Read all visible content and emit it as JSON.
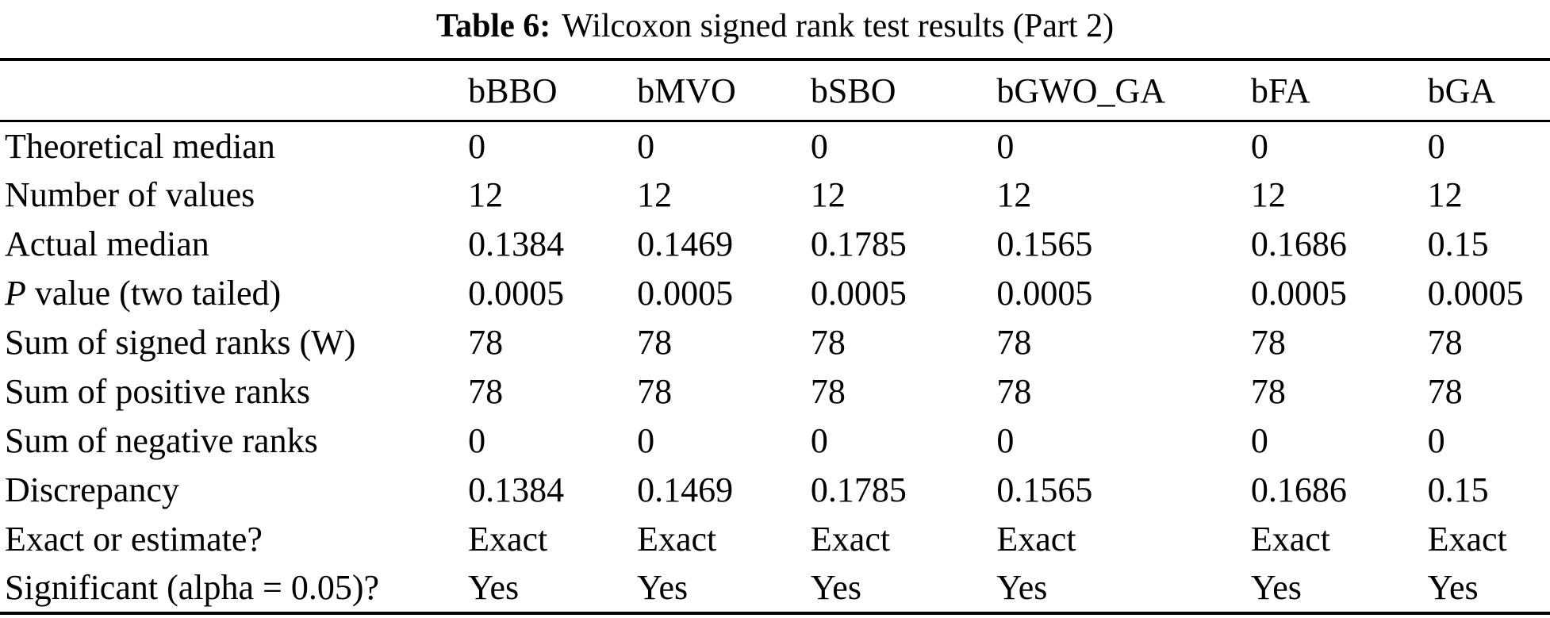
{
  "caption": {
    "label": "Table 6:",
    "text": "Wilcoxon signed rank test results (Part 2)"
  },
  "table": {
    "columns": [
      "bBBO",
      "bMVO",
      "bSBO",
      "bGWO_GA",
      "bFA",
      "bGA"
    ],
    "rows": [
      {
        "label": "Theoretical median",
        "values": [
          "0",
          "0",
          "0",
          "0",
          "0",
          "0"
        ]
      },
      {
        "label": "Number of values",
        "values": [
          "12",
          "12",
          "12",
          "12",
          "12",
          "12"
        ]
      },
      {
        "label": "Actual median",
        "values": [
          "0.1384",
          "0.1469",
          "0.1785",
          "0.1565",
          "0.1686",
          "0.15"
        ]
      },
      {
        "label_italic": "P",
        "label": " value (two tailed)",
        "values": [
          "0.0005",
          "0.0005",
          "0.0005",
          "0.0005",
          "0.0005",
          "0.0005"
        ]
      },
      {
        "label": "Sum of signed ranks (W)",
        "values": [
          "78",
          "78",
          "78",
          "78",
          "78",
          "78"
        ]
      },
      {
        "label": "Sum of positive ranks",
        "values": [
          "78",
          "78",
          "78",
          "78",
          "78",
          "78"
        ]
      },
      {
        "label": "Sum of negative ranks",
        "values": [
          "0",
          "0",
          "0",
          "0",
          "0",
          "0"
        ]
      },
      {
        "label": "Discrepancy",
        "values": [
          "0.1384",
          "0.1469",
          "0.1785",
          "0.1565",
          "0.1686",
          "0.15"
        ]
      },
      {
        "label": "Exact or estimate?",
        "values": [
          "Exact",
          "Exact",
          "Exact",
          "Exact",
          "Exact",
          "Exact"
        ]
      },
      {
        "label": "Significant (alpha = 0.05)?",
        "values": [
          "Yes",
          "Yes",
          "Yes",
          "Yes",
          "Yes",
          "Yes"
        ]
      }
    ]
  },
  "colors": {
    "text": "#000000",
    "background": "#ffffff",
    "rule": "#000000"
  }
}
